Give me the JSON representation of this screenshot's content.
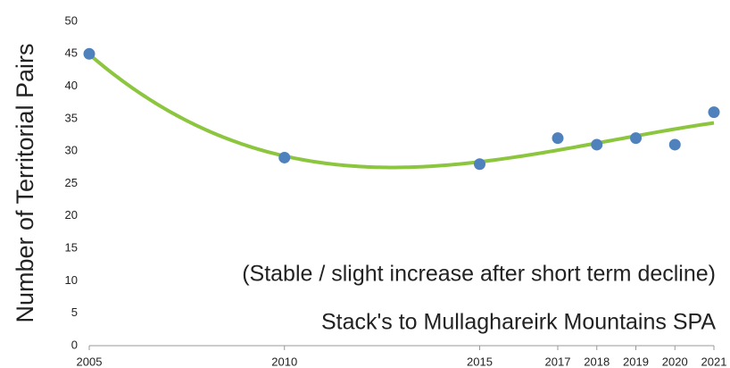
{
  "chart_data": {
    "type": "scatter",
    "y_label": "Number of Territorial Pairs",
    "annotations": [
      "(Stable / slight increase after short term decline)",
      "Stack's to Mullaghareirk Mountains SPA"
    ],
    "series": [
      {
        "name": "Territorial Pairs",
        "color": "#4f81bd",
        "x": [
          2005,
          2010,
          2015,
          2017,
          2018,
          2019,
          2020,
          2021
        ],
        "values": [
          45,
          29,
          28,
          32,
          31,
          32,
          31,
          36
        ]
      }
    ],
    "trendline": {
      "type": "polynomial",
      "order": 3,
      "color": "#8cc63f"
    },
    "xlim": [
      2005,
      2021
    ],
    "xticks": [
      2005,
      2010,
      2015,
      2017,
      2018,
      2019,
      2020,
      2021
    ],
    "ylim": [
      0,
      50
    ],
    "yticks": [
      0,
      5,
      10,
      15,
      20,
      25,
      30,
      35,
      40,
      45,
      50
    ]
  }
}
